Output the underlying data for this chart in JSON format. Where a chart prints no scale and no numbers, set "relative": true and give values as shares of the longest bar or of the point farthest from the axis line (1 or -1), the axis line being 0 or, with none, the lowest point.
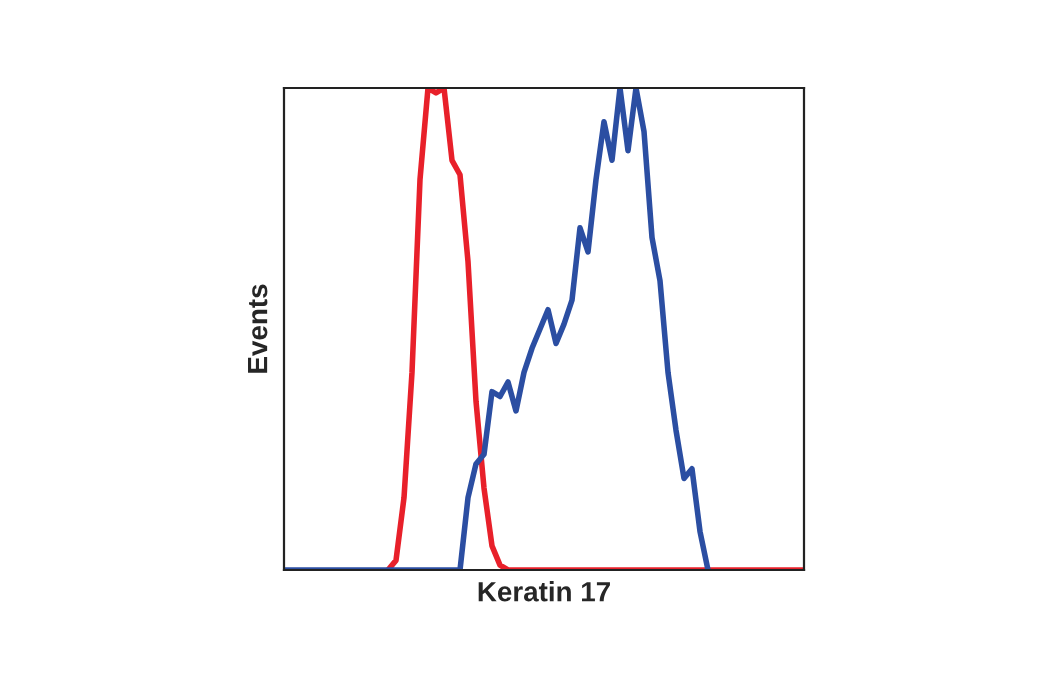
{
  "chart_data": {
    "type": "line",
    "relative": true,
    "xlabel": "Keratin 17",
    "ylabel": "Events",
    "categories": [
      null,
      null,
      null,
      null,
      null,
      null,
      null,
      null,
      null,
      null,
      null,
      null,
      null,
      null,
      null,
      null,
      null,
      null,
      null,
      null,
      null,
      null,
      null,
      null,
      null,
      null,
      null,
      null,
      null,
      null,
      null,
      null,
      null,
      null,
      null,
      null,
      null,
      null,
      null,
      null,
      null,
      null,
      null,
      null,
      null,
      null,
      null,
      null,
      null,
      null,
      null,
      null,
      null,
      null,
      null,
      null,
      null,
      null,
      null,
      null,
      null,
      null,
      null,
      null,
      null,
      null
    ],
    "series": [
      {
        "color": "#e8202a",
        "values": [
          null,
          null,
          null,
          null,
          null,
          null,
          null,
          null,
          null,
          null,
          null,
          null,
          null,
          0,
          0.02,
          0.15,
          0.41,
          0.81,
          1.0,
          0.99,
          1.0,
          0.85,
          0.82,
          0.64,
          0.35,
          0.17,
          0.05,
          0.01,
          0,
          0,
          0,
          0,
          0,
          0,
          0,
          0,
          0,
          0,
          0,
          0,
          0,
          0,
          0,
          0,
          0,
          0,
          0,
          0,
          0,
          0,
          0,
          0,
          0,
          0,
          0,
          0,
          0,
          0,
          0,
          0,
          0,
          0,
          0,
          0,
          0,
          0
        ]
      },
      {
        "color": "#2b4ea2",
        "values": [
          0,
          0,
          0,
          0,
          0,
          0,
          0,
          0,
          0,
          0,
          0,
          0,
          0,
          0,
          0,
          0,
          0,
          0,
          0,
          0,
          0,
          0,
          0,
          0.15,
          0.22,
          0.24,
          0.37,
          0.36,
          0.39,
          0.33,
          0.41,
          0.46,
          0.5,
          0.54,
          0.47,
          0.51,
          0.56,
          0.71,
          0.66,
          0.81,
          0.93,
          0.85,
          1.0,
          0.87,
          1.0,
          0.91,
          0.69,
          0.6,
          0.41,
          0.29,
          0.19,
          0.21,
          0.08,
          0,
          null,
          null,
          null,
          null,
          null,
          null,
          null,
          null,
          null,
          null,
          null,
          null
        ]
      }
    ]
  }
}
